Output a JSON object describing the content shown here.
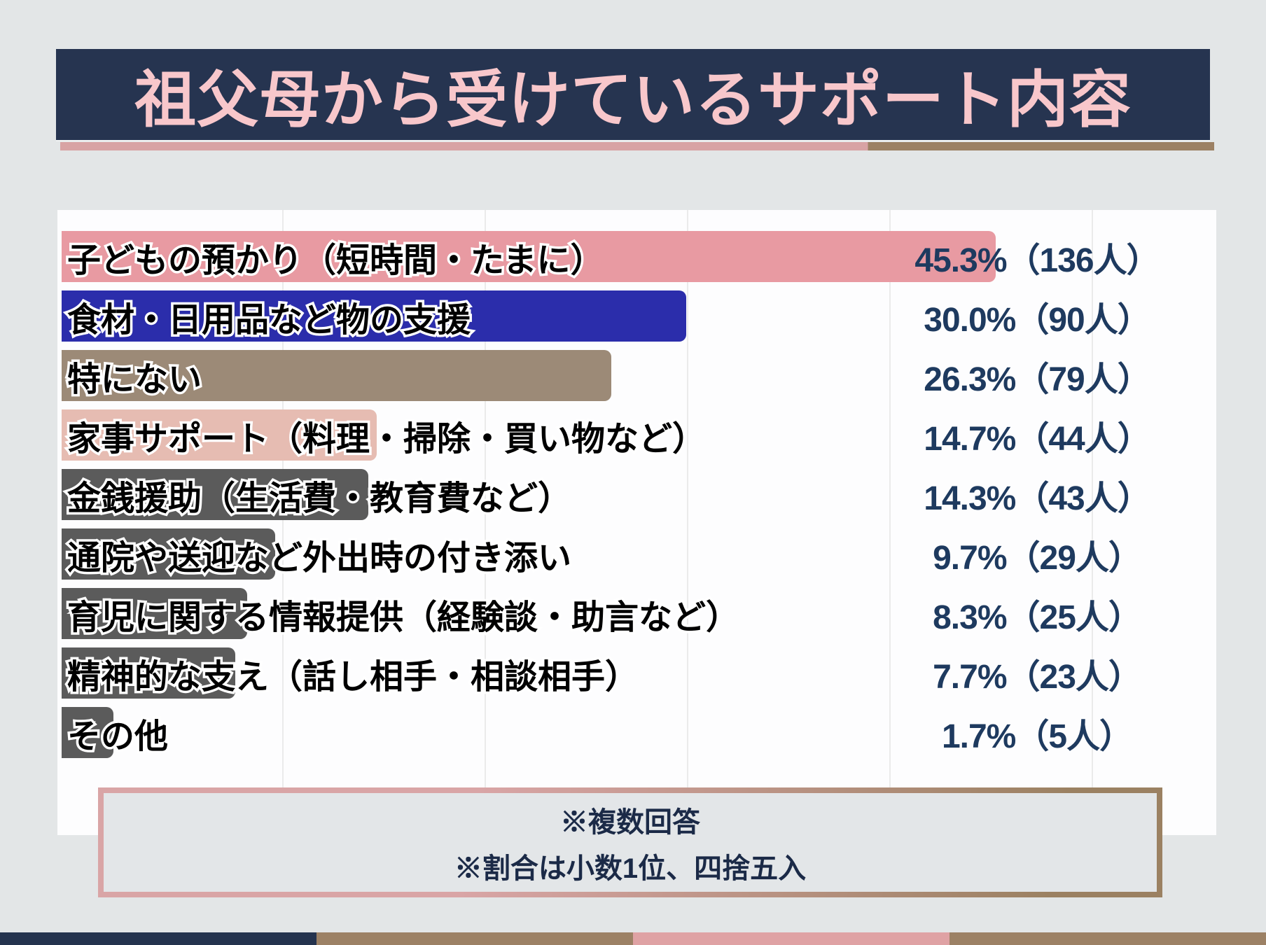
{
  "title": "祖父母から受けているサポート内容",
  "chart_data": {
    "type": "bar",
    "orientation": "horizontal",
    "title": "祖父母から受けているサポート内容",
    "categories": [
      "子どもの預かり（短時間・たまに）",
      "食材・日用品など物の支援",
      "特にない",
      "家事サポート（料理・掃除・買い物など）",
      "金銭援助（生活費・教育費など）",
      "通院や送迎など外出時の付き添い",
      "育児に関する情報提供（経験談・助言など）",
      "精神的な支え（話し相手・相談相手）",
      "その他"
    ],
    "values": [
      45.3,
      30.0,
      26.3,
      14.7,
      14.3,
      9.7,
      8.3,
      7.7,
      1.7
    ],
    "counts": [
      136,
      90,
      79,
      44,
      43,
      29,
      25,
      23,
      5
    ],
    "value_labels": [
      "45.3%（136人）",
      "30.0%（90人）",
      "26.3%（79人）",
      "14.7%（44人）",
      "14.3%（43人）",
      "9.7%（29人）",
      "8.3%（25人）",
      "7.7%（23人）",
      "1.7%（5人）"
    ],
    "bar_colors": [
      "#e89aa2",
      "#2b2dab",
      "#9c8a77",
      "#e6bcb2",
      "#5b5b5b",
      "#5b5b5b",
      "#5b5b5b",
      "#5b5b5b",
      "#5b5b5b"
    ],
    "xlim": [
      0,
      55
    ],
    "gridlines_percent": [
      10,
      20,
      30,
      40,
      50
    ],
    "grid": true,
    "legend": false,
    "xlabel": "",
    "ylabel": ""
  },
  "notes": {
    "line1": "※複数回答",
    "line2": "※割合は小数1位、四捨五入"
  },
  "colors": {
    "page_bg": "#e3e6e7",
    "header_bg": "#263450",
    "title_text": "#f8c7cb",
    "underline_pink": "#d8a3a4",
    "underline_brown": "#9c8164",
    "panel_bg": "#fdfdfe",
    "grid_line": "#ebebeb",
    "label_text": "#000000",
    "label_outline": "#ffffff",
    "value_text": "#1e3a5f",
    "note_text": "#1b2a47",
    "note_box_bg": "#e3e6e8",
    "note_border_pink": "#d9a5a6",
    "note_border_brown": "#9b8162",
    "stripe": [
      "#24334e",
      "#9c8165",
      "#dfa2a4",
      "#9c8165"
    ]
  }
}
